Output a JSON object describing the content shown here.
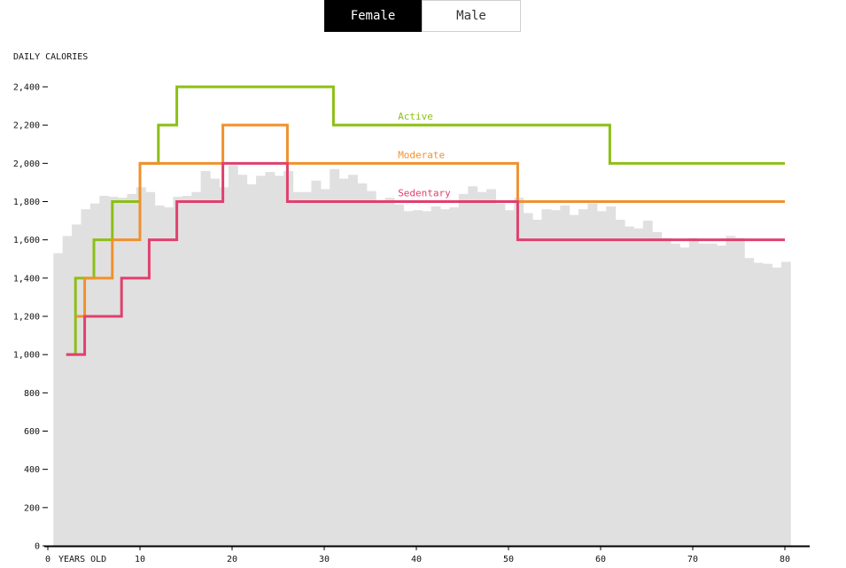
{
  "toggle": {
    "options": [
      {
        "label": "Female",
        "active": true
      },
      {
        "label": "Male",
        "active": false
      }
    ]
  },
  "colors": {
    "background": "#e0e0e0",
    "axis": "#000000",
    "active": "#8cbf16",
    "moderate": "#f0912e",
    "sedentary": "#e0406e"
  },
  "chart_data": {
    "type": "line",
    "ylabel": "DAILY CALORIES",
    "xlabel": "YEARS OLD",
    "xlim": [
      -1,
      81
    ],
    "ylim": [
      0,
      2400
    ],
    "x_ticks": [
      {
        "value": 0,
        "label": "0"
      },
      {
        "value": 10,
        "label": "10"
      },
      {
        "value": 20,
        "label": "20"
      },
      {
        "value": 30,
        "label": "30"
      },
      {
        "value": 40,
        "label": "40"
      },
      {
        "value": 50,
        "label": "50"
      },
      {
        "value": 60,
        "label": "60"
      },
      {
        "value": 70,
        "label": "70"
      },
      {
        "value": 80,
        "label": "80"
      }
    ],
    "y_ticks": [
      {
        "value": 0,
        "label": "0"
      },
      {
        "value": 200,
        "label": "200"
      },
      {
        "value": 400,
        "label": "400"
      },
      {
        "value": 600,
        "label": "600"
      },
      {
        "value": 800,
        "label": "800"
      },
      {
        "value": 1000,
        "label": "1,000"
      },
      {
        "value": 1200,
        "label": "1,200"
      },
      {
        "value": 1400,
        "label": "1,400"
      },
      {
        "value": 1600,
        "label": "1,600"
      },
      {
        "value": 1800,
        "label": "1,800"
      },
      {
        "value": 2000,
        "label": "2,000"
      },
      {
        "value": 2200,
        "label": "2,200"
      },
      {
        "value": 2400,
        "label": "2,400"
      }
    ],
    "background_bars": {
      "x_start": 0.6,
      "width": 1,
      "values": [
        1530,
        1620,
        1680,
        1760,
        1790,
        1830,
        1825,
        1820,
        1840,
        1875,
        1850,
        1780,
        1770,
        1825,
        1830,
        1850,
        1960,
        1920,
        1875,
        1990,
        1940,
        1890,
        1935,
        1955,
        1935,
        1960,
        1850,
        1850,
        1910,
        1865,
        1970,
        1920,
        1940,
        1895,
        1855,
        1795,
        1820,
        1785,
        1750,
        1755,
        1750,
        1775,
        1760,
        1770,
        1840,
        1880,
        1850,
        1865,
        1790,
        1755,
        1820,
        1740,
        1705,
        1760,
        1755,
        1780,
        1730,
        1760,
        1790,
        1750,
        1775,
        1705,
        1670,
        1660,
        1700,
        1640,
        1610,
        1580,
        1560,
        1610,
        1580,
        1580,
        1570,
        1620,
        1610,
        1505,
        1480,
        1475,
        1455,
        1485
      ]
    },
    "series": [
      {
        "name": "Active",
        "color_key": "active",
        "steps": [
          [
            2,
            1000
          ],
          [
            3,
            1400
          ],
          [
            5,
            1600
          ],
          [
            7,
            1800
          ],
          [
            10,
            2000
          ],
          [
            12,
            2200
          ],
          [
            14,
            2400
          ],
          [
            31,
            2200
          ],
          [
            61,
            2000
          ],
          [
            80,
            2000
          ]
        ]
      },
      {
        "name": "Moderate",
        "color_key": "moderate",
        "steps": [
          [
            3,
            1200
          ],
          [
            4,
            1400
          ],
          [
            7,
            1600
          ],
          [
            10,
            2000
          ],
          [
            19,
            2200
          ],
          [
            26,
            2000
          ],
          [
            51,
            1800
          ],
          [
            80,
            1800
          ]
        ]
      },
      {
        "name": "Sedentary",
        "color_key": "sedentary",
        "steps": [
          [
            2,
            1000
          ],
          [
            4,
            1200
          ],
          [
            8,
            1400
          ],
          [
            11,
            1600
          ],
          [
            14,
            1800
          ],
          [
            19,
            2000
          ],
          [
            26,
            1800
          ],
          [
            51,
            1600
          ],
          [
            80,
            1600
          ]
        ]
      }
    ],
    "grid": false,
    "legend": "inline"
  }
}
